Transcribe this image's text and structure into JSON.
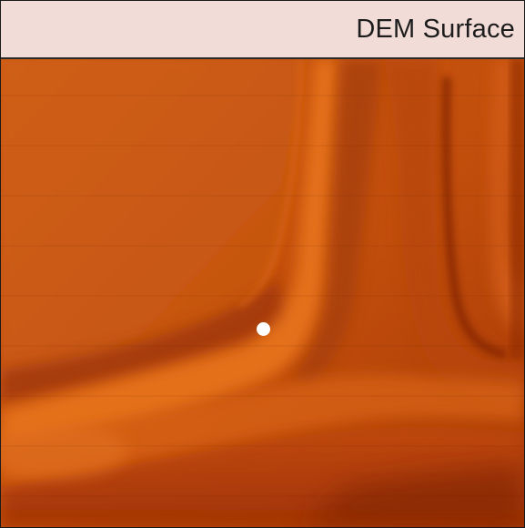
{
  "map": {
    "title": "DEM Surface",
    "colors": {
      "base": "#c4520e",
      "highlight": "#ec7a1c",
      "shadow": "#8a2a06",
      "title_bar": "#f2dcd8",
      "marker": "#ffffff"
    },
    "marker_icon": "location-dot-icon"
  }
}
